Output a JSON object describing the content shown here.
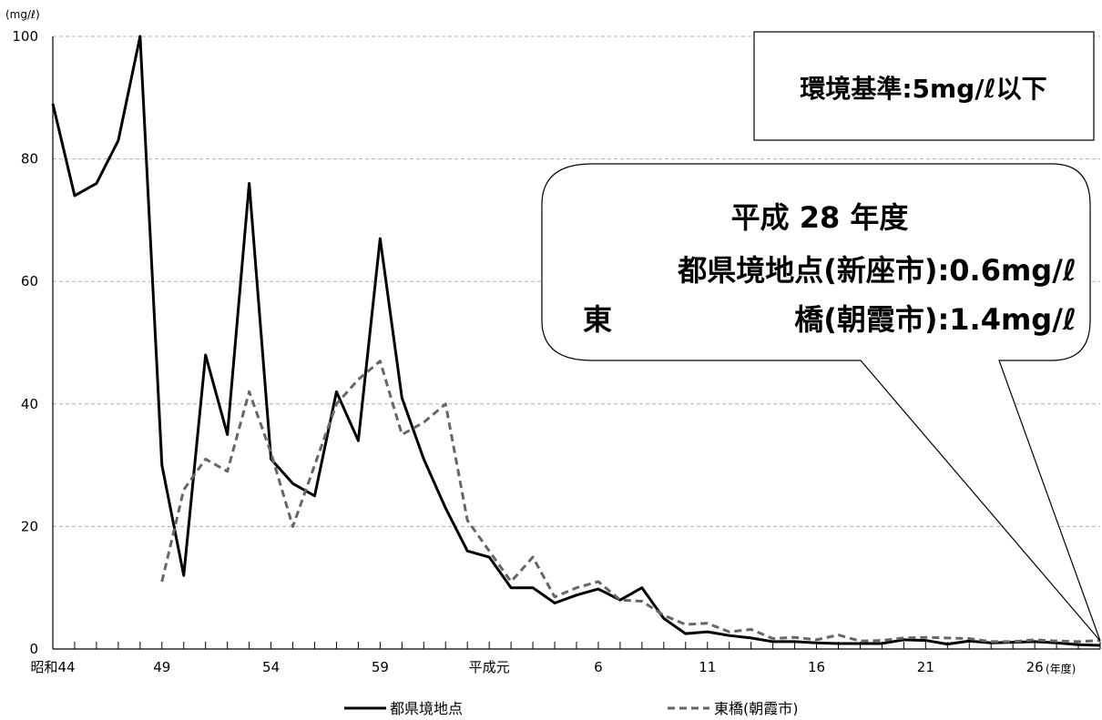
{
  "chart_data": {
    "type": "line",
    "ylabel": "(mg/ℓ)",
    "xlabel": "(年度)",
    "ylim": [
      0,
      100
    ],
    "yticks": [
      0,
      20,
      40,
      60,
      80,
      100
    ],
    "x_fiscal_years": [
      44,
      45,
      46,
      47,
      48,
      49,
      50,
      51,
      52,
      53,
      54,
      55,
      56,
      57,
      58,
      59,
      60,
      61,
      62,
      63,
      64,
      65,
      66,
      67,
      68,
      69,
      70,
      71,
      72,
      73,
      74,
      75,
      76,
      77,
      78,
      79,
      80,
      81,
      82,
      83,
      84,
      85,
      86,
      87,
      88,
      89,
      90,
      91,
      92
    ],
    "xtick_labels": [
      {
        "year": 44,
        "label": "昭和44"
      },
      {
        "year": 49,
        "label": "49"
      },
      {
        "year": 54,
        "label": "54"
      },
      {
        "year": 59,
        "label": "59"
      },
      {
        "year": 64,
        "label": "平成元"
      },
      {
        "year": 69,
        "label": "6"
      },
      {
        "year": 74,
        "label": "11"
      },
      {
        "year": 79,
        "label": "16"
      },
      {
        "year": 84,
        "label": "21"
      },
      {
        "year": 89,
        "label": "26"
      }
    ],
    "grid": "horizontal dashed",
    "legend_position": "bottom",
    "series": [
      {
        "name": "都県境地点",
        "style": "solid",
        "color": "#000000",
        "values": [
          89,
          74,
          76,
          83,
          100,
          30,
          12,
          48,
          35,
          76,
          31,
          27,
          25,
          42,
          34,
          67,
          41,
          31,
          23,
          16,
          15,
          10,
          10,
          7.5,
          8.8,
          9.8,
          8,
          10,
          5,
          2.5,
          2.8,
          2.2,
          1.8,
          1.2,
          1.2,
          1,
          0.9,
          0.9,
          0.9,
          1.5,
          1.4,
          0.8,
          1.3,
          1,
          1.1,
          1.2,
          1,
          0.7,
          0.6
        ]
      },
      {
        "name": "東橋(朝霞市)",
        "style": "dashed",
        "color": "#666666",
        "values": [
          null,
          null,
          null,
          null,
          null,
          11,
          26,
          31,
          29,
          42,
          32,
          20,
          30,
          40,
          44,
          47,
          35,
          37,
          40,
          21,
          16,
          11,
          15,
          8.5,
          10,
          11,
          8,
          7.8,
          5.5,
          4,
          4.2,
          2.8,
          3.2,
          1.7,
          1.9,
          1.5,
          2.3,
          1.3,
          1.4,
          1.8,
          1.9,
          1.8,
          1.7,
          1.2,
          1.2,
          1.5,
          1.3,
          1.2,
          1.4
        ]
      }
    ],
    "annotations": {
      "standard": "環境基準:5mg/ℓ以下",
      "callout_lines": [
        "平成 28 年度",
        "都県境地点(新座市):0.6mg/ℓ",
        "東",
        "橋(朝霞市):1.4mg/ℓ"
      ]
    }
  }
}
